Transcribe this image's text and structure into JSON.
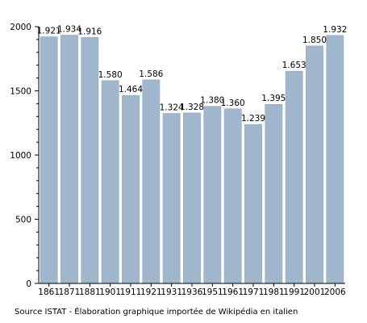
{
  "chart_data": {
    "type": "bar",
    "categories": [
      "1861",
      "1871",
      "1881",
      "1901",
      "1911",
      "1921",
      "1931",
      "1936",
      "1951",
      "1961",
      "1971",
      "1981",
      "1991",
      "2001",
      "2006"
    ],
    "values": [
      1921,
      1934,
      1916,
      1580,
      1464,
      1586,
      1324,
      1328,
      1380,
      1360,
      1239,
      1395,
      1653,
      1850,
      1932
    ],
    "value_labels": [
      "1.921",
      "1.934",
      "1.916",
      "1.580",
      "1.464",
      "1.586",
      "1.324",
      "1.328",
      "1.380",
      "1.360",
      "1.239",
      "1.395",
      "1.653",
      "1.850",
      "1.932"
    ],
    "yticks": [
      0,
      500,
      1000,
      1500,
      2000
    ],
    "ylim": [
      0,
      2000
    ],
    "grid": false,
    "bar_color": "#9fb6cd"
  },
  "source_note": "Source ISTAT - Élaboration graphique importée de Wikipédia en italien"
}
